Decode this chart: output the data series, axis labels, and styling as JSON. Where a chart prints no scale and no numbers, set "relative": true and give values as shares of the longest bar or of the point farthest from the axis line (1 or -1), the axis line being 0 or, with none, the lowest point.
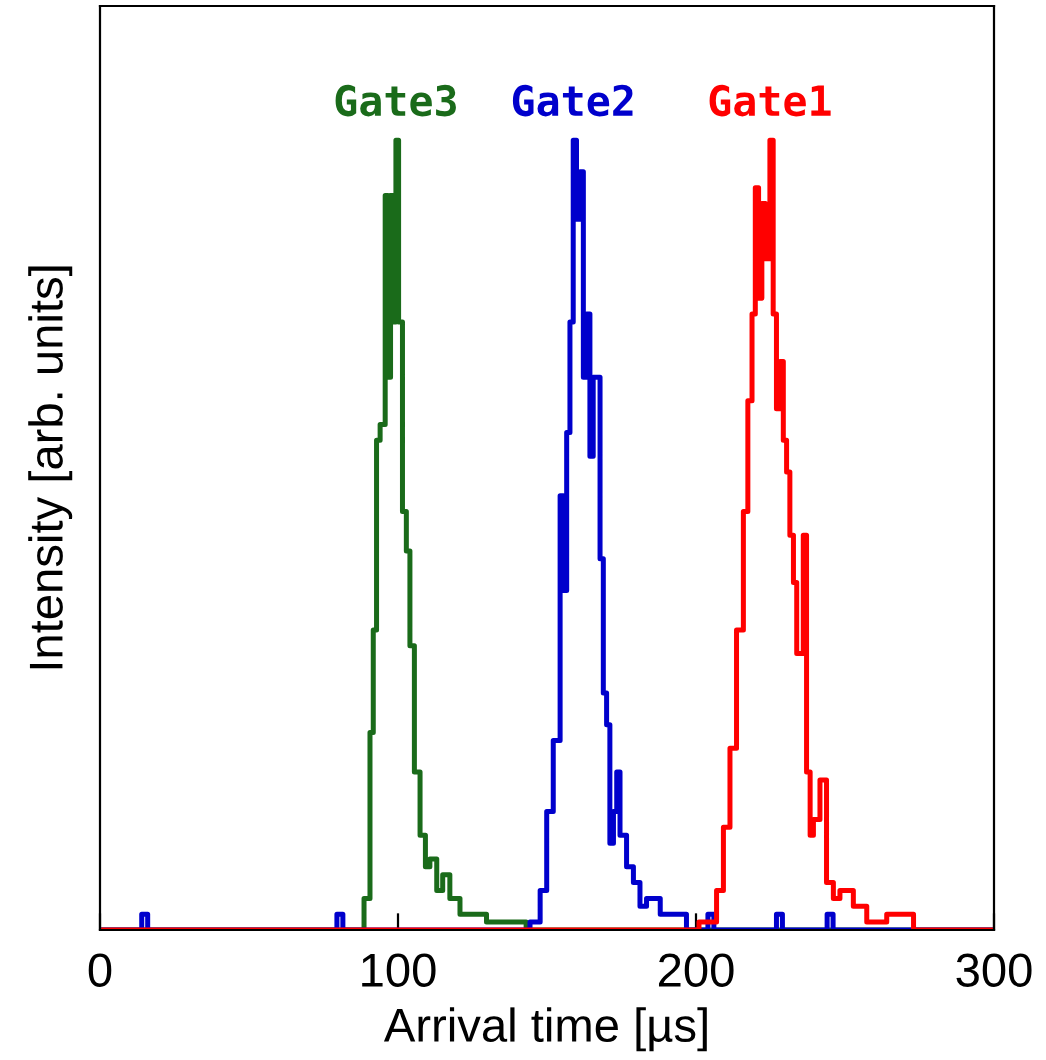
{
  "chart_data": {
    "type": "step",
    "relative": true,
    "xlabel": "Arrival time [µs]",
    "ylabel": "Intensity [arb. units]",
    "xlim": [
      0,
      300
    ],
    "xticks": [
      0,
      100,
      200,
      300
    ],
    "grid": false,
    "legend": false,
    "marker": "none",
    "line_style": "solid",
    "series": [
      {
        "name": "Gate3",
        "color": "#1a6b1a",
        "x": [
          0,
          86,
          88.6,
          90.6,
          91.7,
          92.8,
          94,
          95.7,
          96.6,
          97.5,
          98.4,
          99.3,
          100.2,
          101.5,
          102.8,
          104,
          105.5,
          107.4,
          109.2,
          110.7,
          113,
          115,
          117.4,
          120.8,
          125.3,
          129.7,
          134,
          143,
          300
        ],
        "values": [
          0,
          0,
          0.04,
          0.25,
          0.38,
          0.62,
          0.64,
          0.93,
          0.7,
          0.93,
          0.77,
          1,
          0.77,
          0.53,
          0.48,
          0.36,
          0.2,
          0.12,
          0.08,
          0.09,
          0.05,
          0.07,
          0.04,
          0.02,
          0.02,
          0.01,
          0.01,
          0,
          0
        ]
      },
      {
        "name": "Gate2",
        "color": "#0000cc",
        "x": [
          0,
          14,
          16,
          79.5,
          81.5,
          144.3,
          147.7,
          149.9,
          152.1,
          154.4,
          155.5,
          156.6,
          157.7,
          158.8,
          159.9,
          161.1,
          162.2,
          163.3,
          164.4,
          165.5,
          166.7,
          167.8,
          168.9,
          170,
          171.1,
          172.3,
          173.4,
          174.5,
          176.7,
          179,
          181.2,
          183.4,
          188,
          194.6,
          196.8,
          204,
          206,
          227,
          229,
          244,
          246,
          300
        ],
        "values": [
          0,
          0.02,
          0,
          0.02,
          0,
          0.01,
          0.05,
          0.15,
          0.24,
          0.55,
          0.43,
          0.63,
          0.77,
          1,
          0.9,
          0.96,
          0.7,
          0.78,
          0.6,
          0.7,
          0.7,
          0.47,
          0.3,
          0.26,
          0.11,
          0.15,
          0.2,
          0.12,
          0.08,
          0.06,
          0.03,
          0.04,
          0.02,
          0.02,
          0,
          0.02,
          0,
          0.02,
          0,
          0.02,
          0,
          0
        ]
      },
      {
        "name": "Gate1",
        "color": "#ff0000",
        "x": [
          0,
          201,
          206.9,
          209.2,
          211.4,
          213.6,
          215.9,
          217.4,
          218.8,
          219.9,
          221,
          222.1,
          223.3,
          224.8,
          225.9,
          227,
          228.2,
          229.3,
          230.4,
          231.5,
          232.7,
          233.8,
          234.9,
          236,
          237.1,
          238.3,
          239.4,
          241.6,
          243.8,
          246.1,
          248.3,
          252.8,
          257.3,
          264,
          270.7,
          273,
          300
        ],
        "values": [
          0,
          0.01,
          0.05,
          0.13,
          0.23,
          0.38,
          0.53,
          0.67,
          0.78,
          0.94,
          0.8,
          0.92,
          0.85,
          1,
          0.78,
          0.66,
          0.72,
          0.62,
          0.58,
          0.5,
          0.44,
          0.35,
          0.35,
          0.5,
          0.2,
          0.12,
          0.14,
          0.19,
          0.06,
          0.04,
          0.05,
          0.03,
          0.01,
          0.02,
          0.02,
          0,
          0
        ]
      }
    ]
  }
}
